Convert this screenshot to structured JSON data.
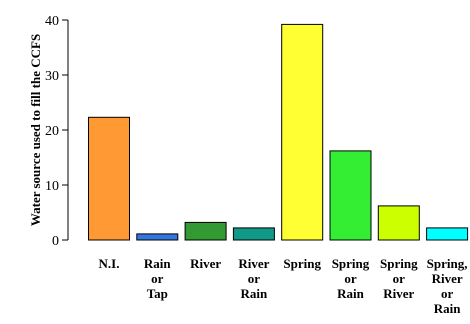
{
  "chart_data": {
    "type": "bar",
    "ylabel": "Water source used to fill the CCFS",
    "ylim": [
      0,
      40
    ],
    "yticks": [
      0,
      10,
      20,
      30,
      40
    ],
    "grid": false,
    "categories": [
      [
        "N.I."
      ],
      [
        "Rain",
        "or",
        "Tap"
      ],
      [
        "River"
      ],
      [
        "River",
        "or",
        "Rain"
      ],
      [
        "Spring"
      ],
      [
        "Spring",
        "or",
        "Rain"
      ],
      [
        "Spring",
        "or",
        "River"
      ],
      [
        "Spring,",
        "River",
        "or",
        "Rain"
      ]
    ],
    "values": [
      22.3,
      1.1,
      3.2,
      2.2,
      39.2,
      16.2,
      6.2,
      2.2
    ],
    "colors": [
      "#ff9933",
      "#3377dd",
      "#339933",
      "#119988",
      "#ffff33",
      "#33ee33",
      "#ccff00",
      "#00ffff"
    ]
  }
}
